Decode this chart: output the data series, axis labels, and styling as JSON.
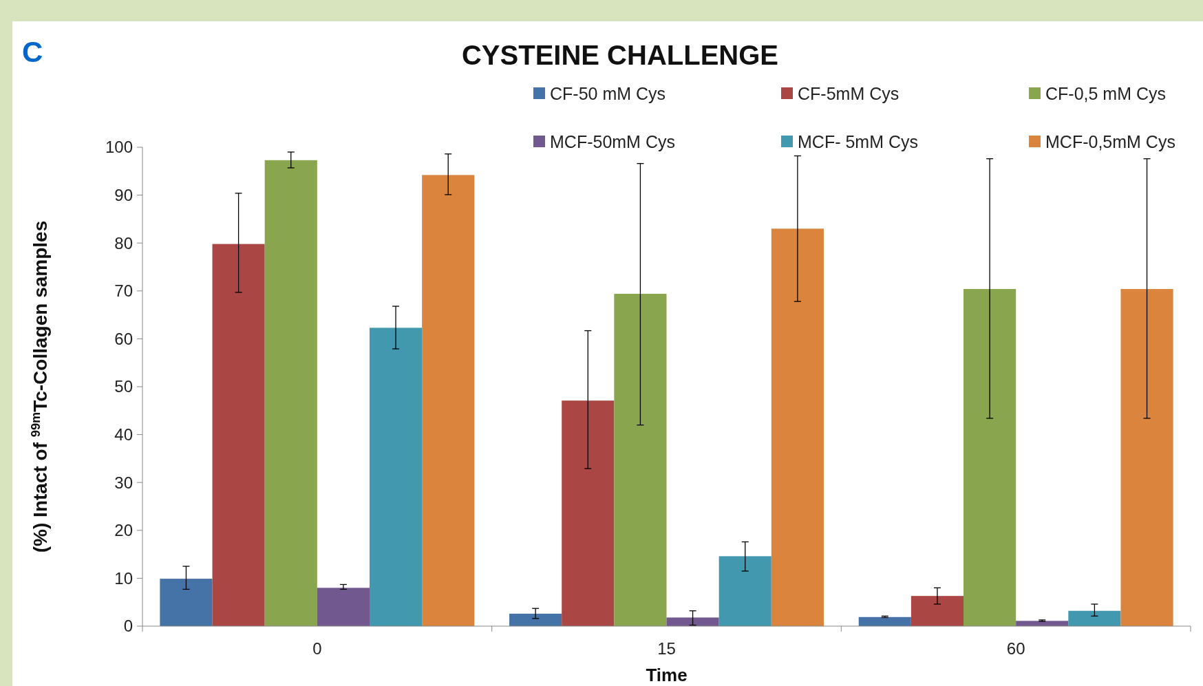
{
  "chart_data": {
    "type": "bar",
    "title": "CYSTEINE CHALLENGE",
    "xlabel": "Time",
    "ylabel": "(%) Intact of $^{99m}$Tc-Collagen samples",
    "annotations": [
      "C"
    ],
    "categories": [
      "0",
      "15",
      "60"
    ],
    "series": [
      {
        "name": "CF-50 mM Cys",
        "color": "#4572a7",
        "values": [
          9.9,
          2.6,
          1.9
        ],
        "errors": [
          [
            7.7,
            12.5
          ],
          [
            1.6,
            3.7
          ],
          [
            1.8,
            2.1
          ]
        ]
      },
      {
        "name": "CF-5mM Cys",
        "color": "#aa4643",
        "values": [
          79.8,
          47.1,
          6.3
        ],
        "errors": [
          [
            69.7,
            90.4
          ],
          [
            32.9,
            61.7
          ],
          [
            4.6,
            8.0
          ]
        ]
      },
      {
        "name": "CF-0,5 mM Cys",
        "color": "#89a54e",
        "values": [
          97.3,
          69.4,
          70.4
        ],
        "errors": [
          [
            95.7,
            99.0
          ],
          [
            42.0,
            96.6
          ],
          [
            43.4,
            97.6
          ]
        ]
      },
      {
        "name": "MCF-50mM Cys",
        "color": "#71588f",
        "values": [
          8.0,
          1.8,
          1.1
        ],
        "errors": [
          [
            7.7,
            8.7
          ],
          [
            0.2,
            3.2
          ],
          [
            1.0,
            1.3
          ]
        ]
      },
      {
        "name": "MCF- 5mM Cys",
        "color": "#4198af",
        "values": [
          62.3,
          14.6,
          3.2
        ],
        "errors": [
          [
            57.9,
            66.8
          ],
          [
            11.5,
            17.6
          ],
          [
            2.1,
            4.6
          ]
        ]
      },
      {
        "name": "MCF-0,5mM Cys",
        "color": "#db843d",
        "values": [
          94.2,
          83.0,
          70.4
        ],
        "errors": [
          [
            90.1,
            98.6
          ],
          [
            67.8,
            98.2
          ],
          [
            43.4,
            97.6
          ]
        ]
      }
    ],
    "ylim": [
      0,
      100
    ],
    "yticks": [
      0,
      10,
      20,
      30,
      40,
      50,
      60,
      70,
      80,
      90,
      100
    ],
    "grid": false,
    "legend": "top right"
  }
}
